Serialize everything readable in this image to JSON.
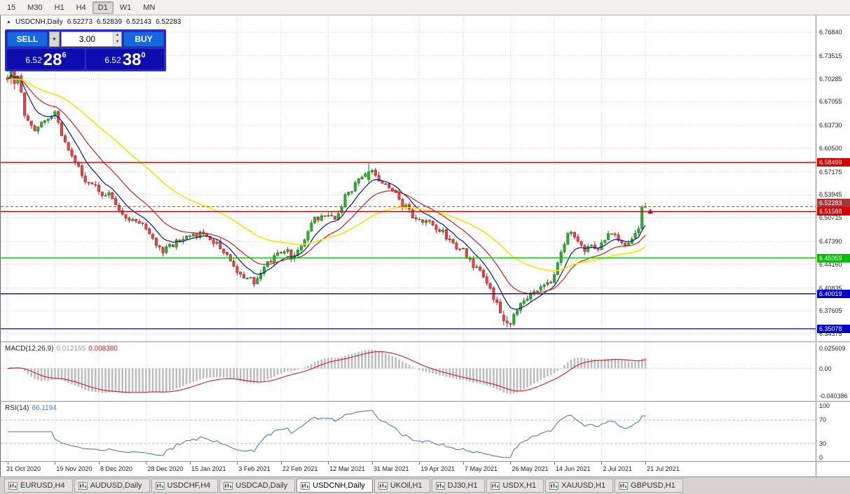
{
  "colors": {
    "up_stroke": "#1d7a1d",
    "up_fill": "#2fae2f",
    "down_stroke": "#b51f1f",
    "down_fill": "#e14848",
    "grid": "#cfcfcf",
    "macd_hist": "#bdbdbd",
    "macd_signal": "#cc1f1f",
    "rsi": "#4a7ebb"
  },
  "toolbar": {
    "periods": [
      "15",
      "M30",
      "H1",
      "H4",
      "D1",
      "W1",
      "MN"
    ],
    "active_period": "D1"
  },
  "chart_header": {
    "collapse_icon": "▲",
    "symbol_title": "USDCNH,Daily",
    "open": "6.52273",
    "high": "6.52839",
    "low": "6.52143",
    "close": "6.52283"
  },
  "trade_panel": {
    "sell_label": "SELL",
    "buy_label": "BUY",
    "volume": "3.00",
    "dropdown_icon": "▼",
    "spin_up_icon": "▲",
    "spin_down_icon": "▼",
    "sell_price": {
      "prefix": "6.52",
      "big": "28",
      "sup": "6"
    },
    "buy_price": {
      "prefix": "6.52",
      "big": "38",
      "sup": "0"
    }
  },
  "indicators": {
    "macd_label": "MACD(12,26,9)",
    "macd_value1": "0.012155",
    "macd_value2": "0.008380",
    "macd_scale": {
      "top": "0.025609",
      "zero": "0.00",
      "bottom": "-0.040386"
    },
    "rsi_label": "RSI(14)",
    "rsi_value": "66.1194",
    "rsi_scale": [
      "100",
      "70",
      "30",
      "0"
    ]
  },
  "tabs": {
    "items": [
      "EURUSD,H4",
      "AUDUSD,Daily",
      "USDCHF,H4",
      "USDCAD,Daily",
      "USDCNH,Daily",
      "UKOil,H1",
      "DJ30,H1",
      "USDX,H1",
      "XAUUSD,H1",
      "GBPUSD,H1"
    ],
    "active": "USDCNH,Daily"
  },
  "chart_data": {
    "type": "candlestick",
    "symbol": "USDCNH",
    "timeframe": "Daily",
    "last_ohlc": {
      "open": 6.52273,
      "high": 6.52839,
      "low": 6.52143,
      "close": 6.52283
    },
    "price_axis": {
      "min": 6.333,
      "max": 6.792,
      "ticks": [
        6.7684,
        6.73515,
        6.70285,
        6.67055,
        6.6373,
        6.605,
        6.57175,
        6.53945,
        6.50715,
        6.4739,
        6.4416,
        6.40835,
        6.37605,
        6.34375
      ]
    },
    "levels": [
      {
        "value": 6.58499,
        "color": "#d40000",
        "style": "solid",
        "kind": "resistance-upper"
      },
      {
        "value": 6.52283,
        "color": "#a83838",
        "style": "dash",
        "kind": "bid"
      },
      {
        "value": 6.51588,
        "color": "#d40000",
        "style": "solid",
        "kind": "resistance-lower"
      },
      {
        "value": 6.45059,
        "color": "#00c000",
        "style": "solid",
        "kind": "support-green"
      },
      {
        "value": 6.40019,
        "color": "#0000cc",
        "style": "solid",
        "kind": "support-blue-upper"
      },
      {
        "value": 6.35078,
        "color": "#0000cc",
        "style": "solid",
        "kind": "support-blue-lower"
      }
    ],
    "markers": [
      {
        "at_index": 189,
        "price": 6.516,
        "color": "#d40000",
        "type": "up-arrow"
      }
    ],
    "candle_count": 190,
    "seed": 20210721,
    "price_path_anchors": [
      [
        0,
        6.705
      ],
      [
        2,
        6.728
      ],
      [
        5,
        6.655
      ],
      [
        8,
        6.628
      ],
      [
        11,
        6.645
      ],
      [
        14,
        6.652
      ],
      [
        17,
        6.612
      ],
      [
        20,
        6.585
      ],
      [
        23,
        6.562
      ],
      [
        27,
        6.545
      ],
      [
        30,
        6.538
      ],
      [
        33,
        6.52
      ],
      [
        36,
        6.505
      ],
      [
        40,
        6.497
      ],
      [
        43,
        6.476
      ],
      [
        46,
        6.458
      ],
      [
        49,
        6.47
      ],
      [
        52,
        6.475
      ],
      [
        55,
        6.482
      ],
      [
        58,
        6.488
      ],
      [
        61,
        6.475
      ],
      [
        64,
        6.46
      ],
      [
        67,
        6.44
      ],
      [
        70,
        6.422
      ],
      [
        73,
        6.418
      ],
      [
        76,
        6.435
      ],
      [
        79,
        6.455
      ],
      [
        82,
        6.462
      ],
      [
        85,
        6.45
      ],
      [
        88,
        6.478
      ],
      [
        91,
        6.505
      ],
      [
        94,
        6.512
      ],
      [
        97,
        6.505
      ],
      [
        100,
        6.535
      ],
      [
        103,
        6.555
      ],
      [
        106,
        6.566
      ],
      [
        108,
        6.57
      ],
      [
        111,
        6.558
      ],
      [
        114,
        6.544
      ],
      [
        117,
        6.527
      ],
      [
        120,
        6.511
      ],
      [
        123,
        6.504
      ],
      [
        126,
        6.497
      ],
      [
        129,
        6.487
      ],
      [
        132,
        6.47
      ],
      [
        135,
        6.461
      ],
      [
        138,
        6.441
      ],
      [
        141,
        6.424
      ],
      [
        144,
        6.396
      ],
      [
        147,
        6.366
      ],
      [
        149,
        6.359
      ],
      [
        152,
        6.39
      ],
      [
        155,
        6.4
      ],
      [
        158,
        6.407
      ],
      [
        161,
        6.416
      ],
      [
        163,
        6.442
      ],
      [
        165,
        6.474
      ],
      [
        167,
        6.489
      ],
      [
        169,
        6.477
      ],
      [
        171,
        6.461
      ],
      [
        173,
        6.471
      ],
      [
        175,
        6.463
      ],
      [
        177,
        6.476
      ],
      [
        179,
        6.486
      ],
      [
        181,
        6.477
      ],
      [
        183,
        6.467
      ],
      [
        185,
        6.477
      ],
      [
        187,
        6.489
      ],
      [
        188,
        6.499
      ],
      [
        189,
        6.5228
      ]
    ],
    "overrides": [
      {
        "i": 1,
        "o": 6.702,
        "h": 6.736,
        "l": 6.695,
        "c": 6.73
      },
      {
        "i": 2,
        "o": 6.73,
        "h": 6.734,
        "l": 6.688,
        "c": 6.696
      },
      {
        "i": 107,
        "o": 6.561,
        "h": 6.5849,
        "l": 6.556,
        "c": 6.572
      },
      {
        "i": 147,
        "o": 6.37,
        "h": 6.376,
        "l": 6.356,
        "c": 6.362
      },
      {
        "i": 148,
        "o": 6.362,
        "h": 6.369,
        "l": 6.353,
        "c": 6.359
      },
      {
        "i": 187,
        "o": 6.486,
        "h": 6.496,
        "l": 6.482,
        "c": 6.492
      },
      {
        "i": 188,
        "o": 6.492,
        "h": 6.525,
        "l": 6.49,
        "c": 6.522
      },
      {
        "i": 189,
        "o": 6.52273,
        "h": 6.52839,
        "l": 6.52143,
        "c": 6.52283
      }
    ],
    "moving_averages": [
      {
        "period": 8,
        "color": "#001899",
        "width": 1.2
      },
      {
        "period": 18,
        "color": "#cc1f1f",
        "width": 1.2
      },
      {
        "period": 45,
        "color": "#ffdf00",
        "width": 1.6
      }
    ],
    "macd": {
      "fast": 12,
      "slow": 26,
      "signal": 9,
      "value_main": 0.012155,
      "value_signal": 0.00838
    },
    "rsi": {
      "period": 14,
      "levels": [
        70,
        30
      ],
      "current": 66.1194
    },
    "date_labels": [
      "31 Oct 2020",
      "19 Nov 2020",
      "8 Dec 2020",
      "28 Dec 2020",
      "15 Jan 2021",
      "3 Feb 2021",
      "22 Feb 2021",
      "12 Mar 2021",
      "31 Mar 2021",
      "19 Apr 2021",
      "7 May 2021",
      "26 May 2021",
      "14 Jun 2021",
      "2 Jul 2021",
      "21 Jul 2021"
    ]
  }
}
